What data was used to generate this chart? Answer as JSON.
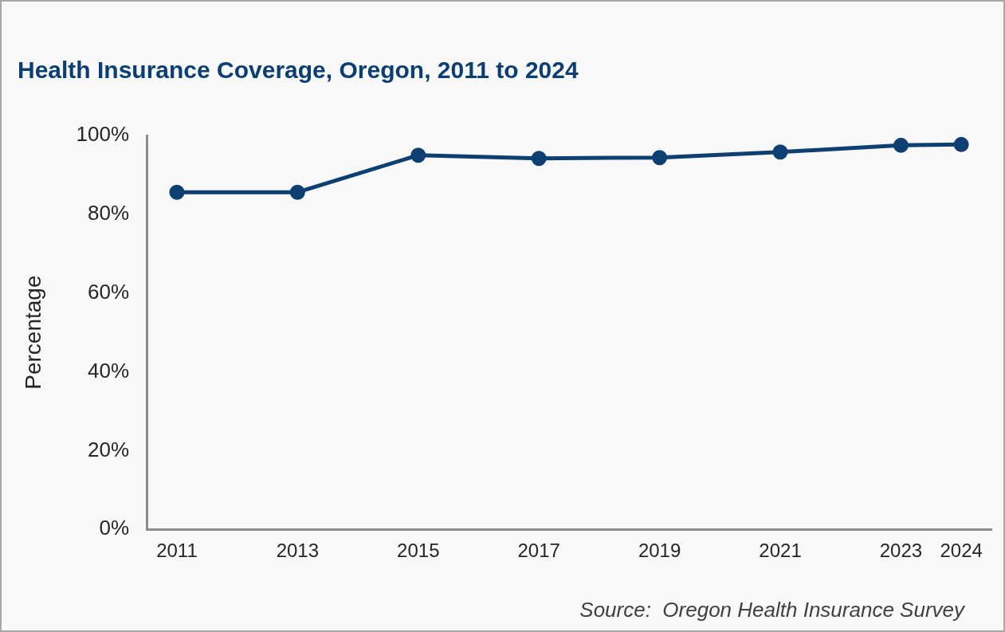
{
  "chart_data": {
    "type": "line",
    "title": "Health Insurance Coverage, Oregon, 2011 to 2024",
    "ylabel": "Percentage",
    "x": [
      2011,
      2013,
      2015,
      2017,
      2019,
      2021,
      2023,
      2024
    ],
    "series": [
      {
        "color": "#0d3f73",
        "values": [
          85.6,
          85.6,
          95.0,
          94.2,
          94.4,
          95.8,
          97.5,
          97.7
        ]
      }
    ],
    "xlim": [
      2010.5,
      2024.5
    ],
    "xticks": [
      2011,
      2013,
      2015,
      2017,
      2019,
      2021,
      2023,
      2024
    ],
    "ylim": [
      0,
      100
    ],
    "yticks": [
      {
        "value": 0,
        "label": "0%"
      },
      {
        "value": 20,
        "label": "20%"
      },
      {
        "value": 40,
        "label": "40%"
      },
      {
        "value": 60,
        "label": "60%"
      },
      {
        "value": 80,
        "label": "80%"
      },
      {
        "value": 100,
        "label": "100%"
      }
    ],
    "grid": false,
    "legend": false,
    "marker": "circle",
    "line_style": "solid",
    "annotations": [
      "Source:  Oregon Health Insurance Survey"
    ]
  }
}
